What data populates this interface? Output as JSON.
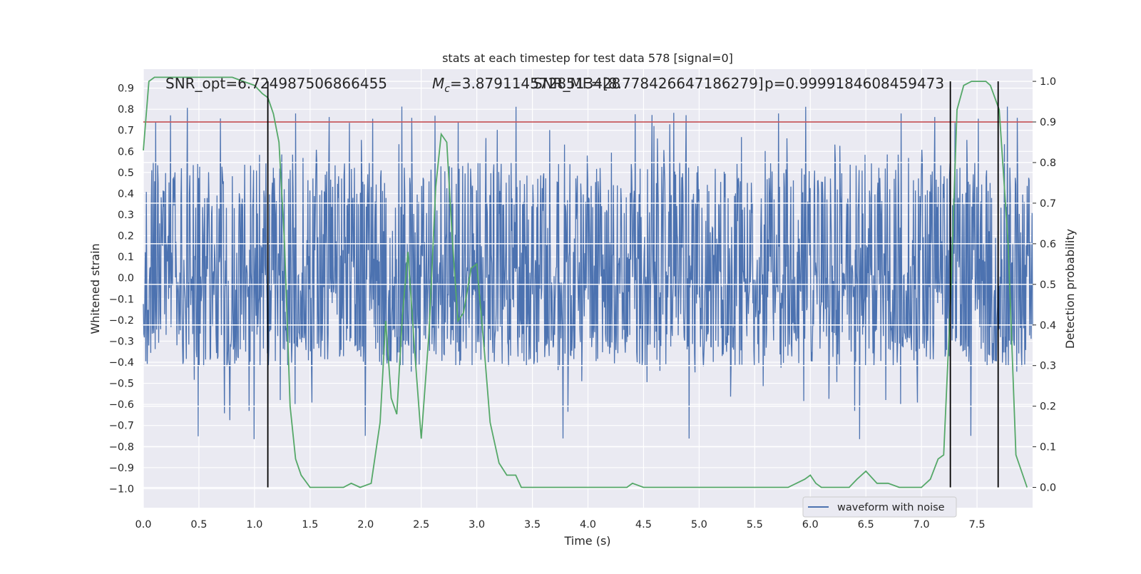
{
  "chart_data": {
    "type": "line",
    "title": "stats at each timestep for test data 578 [signal=0]",
    "xlabel": "Time (s)",
    "ylabel_left": "Whitened strain",
    "ylabel_right": "Detection probability",
    "xlim": [
      0.0,
      8.0
    ],
    "ylim_left": [
      -1.09,
      0.99
    ],
    "ylim_right": [
      -0.05,
      1.03
    ],
    "x_ticks": [
      "0.0",
      "0.5",
      "1.0",
      "1.5",
      "2.0",
      "2.5",
      "3.0",
      "3.5",
      "4.0",
      "4.5",
      "5.0",
      "5.5",
      "6.0",
      "6.5",
      "7.0",
      "7.5"
    ],
    "y_ticks_left": [
      "0.9",
      "0.8",
      "0.7",
      "0.6",
      "0.5",
      "0.4",
      "0.3",
      "0.2",
      "0.1",
      "0.0",
      "−0.1",
      "−0.2",
      "−0.3",
      "−0.4",
      "−0.5",
      "−0.6",
      "−0.7",
      "−0.8",
      "−0.9",
      "−1.0"
    ],
    "y_tick_values_left": [
      0.9,
      0.8,
      0.7,
      0.6,
      0.5,
      0.4,
      0.3,
      0.2,
      0.1,
      0.0,
      -0.1,
      -0.2,
      -0.3,
      -0.4,
      -0.5,
      -0.6,
      -0.7,
      -0.8,
      -0.9,
      -1.0
    ],
    "y_ticks_right": [
      "1.0",
      "0.9",
      "0.8",
      "0.7",
      "0.6",
      "0.5",
      "0.4",
      "0.3",
      "0.2",
      "0.1",
      "0.0"
    ],
    "y_tick_values_right": [
      1.0,
      0.9,
      0.8,
      0.7,
      0.6,
      0.5,
      0.4,
      0.3,
      0.2,
      0.1,
      0.0
    ],
    "annotations": {
      "snr_opt": "SNR_opt=6.724987506866455",
      "mc": "=3.8791145728513428",
      "mc_symbol": "M",
      "mc_sub": "c",
      "snr_mf": "SNR_MF=[8.778426647186279]",
      "p": "p=0.9999184608459473"
    },
    "legend": {
      "label": "waveform with noise",
      "placement": "lower-right"
    },
    "threshold_line": {
      "value_right": 0.9,
      "color": "#c44e52"
    },
    "vertical_lines": [
      1.12,
      7.26,
      7.69
    ],
    "series": [
      {
        "name": "waveform with noise",
        "axis": "left",
        "color": "#4c72b0",
        "style": "dense noise",
        "typical_envelope": [
          -0.42,
          0.55
        ],
        "extreme_range": [
          -0.88,
          0.9
        ]
      },
      {
        "axis": "right",
        "color": "#55a868",
        "x": [
          0.0,
          0.05,
          0.1,
          0.2,
          0.4,
          0.6,
          0.8,
          0.9,
          1.0,
          1.07,
          1.12,
          1.17,
          1.22,
          1.27,
          1.32,
          1.37,
          1.42,
          1.5,
          1.6,
          1.7,
          1.8,
          1.87,
          1.95,
          2.05,
          2.13,
          2.18,
          2.23,
          2.28,
          2.33,
          2.38,
          2.44,
          2.5,
          2.57,
          2.63,
          2.68,
          2.73,
          2.78,
          2.83,
          2.88,
          2.95,
          3.0,
          3.07,
          3.12,
          3.2,
          3.27,
          3.35,
          3.4,
          3.5,
          3.6,
          3.7,
          3.8,
          4.0,
          4.2,
          4.35,
          4.4,
          4.5,
          4.7,
          4.9,
          5.2,
          5.5,
          5.8,
          5.95,
          6.0,
          6.05,
          6.1,
          6.2,
          6.35,
          6.42,
          6.5,
          6.6,
          6.7,
          6.8,
          6.9,
          7.0,
          7.08,
          7.15,
          7.2,
          7.26,
          7.32,
          7.38,
          7.45,
          7.5,
          7.58,
          7.62,
          7.7,
          7.78,
          7.85,
          7.95
        ],
        "values": [
          0.83,
          1.0,
          1.01,
          1.01,
          1.01,
          1.01,
          1.01,
          1.0,
          0.99,
          0.97,
          0.96,
          0.92,
          0.85,
          0.6,
          0.2,
          0.07,
          0.03,
          0.0,
          0.0,
          0.0,
          0.0,
          0.01,
          0.0,
          0.01,
          0.16,
          0.41,
          0.22,
          0.18,
          0.42,
          0.58,
          0.34,
          0.12,
          0.38,
          0.74,
          0.87,
          0.85,
          0.61,
          0.41,
          0.43,
          0.54,
          0.55,
          0.33,
          0.16,
          0.06,
          0.03,
          0.03,
          0.0,
          0.0,
          0.0,
          0.0,
          0.0,
          0.0,
          0.0,
          0.0,
          0.01,
          0.0,
          0.0,
          0.0,
          0.0,
          0.0,
          0.0,
          0.02,
          0.03,
          0.01,
          0.0,
          0.0,
          0.0,
          0.02,
          0.04,
          0.01,
          0.01,
          0.0,
          0.0,
          0.0,
          0.02,
          0.07,
          0.08,
          0.45,
          0.93,
          0.99,
          1.0,
          1.0,
          1.0,
          0.99,
          0.93,
          0.6,
          0.08,
          0.0
        ]
      }
    ]
  }
}
